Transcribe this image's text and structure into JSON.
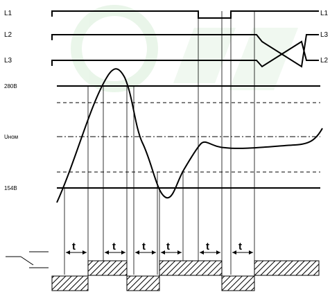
{
  "phase_labels": {
    "left": [
      "L1",
      "L2",
      "L3"
    ],
    "right": [
      "L1",
      "L3",
      "L2"
    ]
  },
  "voltage_labels": {
    "upper": "280В",
    "nominal": "Uном",
    "lower": "154В"
  },
  "delay_label": "t",
  "colors": {
    "line": "#000000",
    "watermark": "#d8eed8"
  }
}
